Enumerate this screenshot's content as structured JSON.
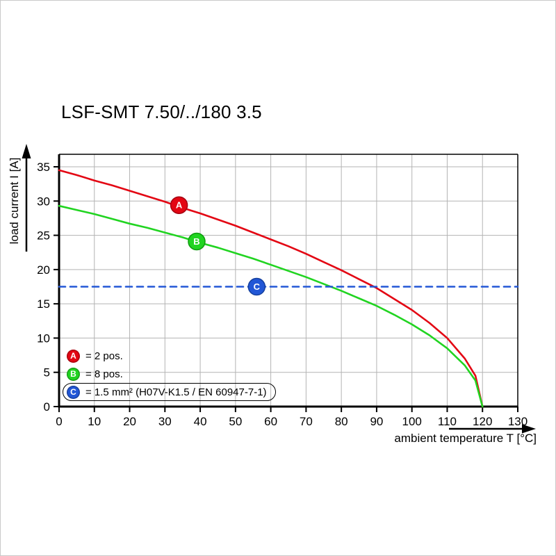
{
  "title": "LSF-SMT 7.50/../180 3.5",
  "axes": {
    "x_label": "ambient temperature T [°C]",
    "y_label": "load current I [A]"
  },
  "legend": [
    {
      "marker": "A",
      "color": "#e30613",
      "label": "= 2 pos.",
      "boxed": false
    },
    {
      "marker": "B",
      "color": "#21d421",
      "label": "= 8 pos.",
      "boxed": false
    },
    {
      "marker": "C",
      "color": "#2257d6",
      "label": "= 1.5 mm² (H07V-K1.5 / EN 60947-7-1)",
      "boxed": true
    }
  ],
  "colors": {
    "grid": "#b3b3b3",
    "axis": "#000000",
    "series_a": "#e30613",
    "series_b": "#21d421",
    "series_c": "#2257d6"
  },
  "chart_data": {
    "type": "line",
    "title": "LSF-SMT 7.50/../180 3.5",
    "xlabel": "ambient temperature T [°C]",
    "ylabel": "load current I [A]",
    "xlim": [
      0,
      130
    ],
    "ylim": [
      0,
      35
    ],
    "x_ticks": [
      0,
      10,
      20,
      30,
      40,
      50,
      60,
      70,
      80,
      90,
      100,
      110,
      120,
      130
    ],
    "y_ticks": [
      0,
      5,
      10,
      15,
      20,
      25,
      30,
      35
    ],
    "grid": true,
    "legend_position": "lower-left-inside",
    "series": [
      {
        "name": "A = 2 pos.",
        "color": "#e30613",
        "edge": "#a50010",
        "style": "solid",
        "x": [
          0,
          5,
          10,
          15,
          20,
          25,
          30,
          35,
          40,
          45,
          50,
          55,
          60,
          65,
          70,
          75,
          80,
          85,
          90,
          95,
          100,
          105,
          110,
          115,
          118,
          120
        ],
        "values": [
          34.5,
          33.8,
          33.0,
          32.3,
          31.5,
          30.7,
          29.9,
          29.0,
          28.2,
          27.3,
          26.4,
          25.4,
          24.4,
          23.4,
          22.3,
          21.1,
          19.9,
          18.6,
          17.3,
          15.7,
          14.1,
          12.2,
          10.0,
          7.0,
          4.5,
          0
        ],
        "point": {
          "label": "A",
          "x": 34,
          "y": 29.4
        }
      },
      {
        "name": "B = 8 pos.",
        "color": "#21d421",
        "edge": "#0f9c0f",
        "style": "solid",
        "x": [
          0,
          5,
          10,
          15,
          20,
          25,
          30,
          35,
          40,
          45,
          50,
          55,
          60,
          65,
          70,
          75,
          80,
          85,
          90,
          95,
          100,
          105,
          110,
          115,
          118,
          120
        ],
        "values": [
          29.3,
          28.7,
          28.1,
          27.4,
          26.7,
          26.1,
          25.4,
          24.7,
          23.9,
          23.2,
          22.4,
          21.6,
          20.7,
          19.8,
          18.9,
          17.9,
          16.9,
          15.8,
          14.7,
          13.4,
          12.0,
          10.4,
          8.5,
          6.0,
          3.8,
          0
        ],
        "point": {
          "label": "B",
          "x": 39,
          "y": 24.1
        }
      },
      {
        "name": "C = 1.5 mm² (H07V-K1.5 / EN 60947-7-1)",
        "color": "#2257d6",
        "edge": "#15409e",
        "style": "dashed",
        "x": [
          0,
          130
        ],
        "values": [
          17.5,
          17.5
        ],
        "point": {
          "label": "C",
          "x": 56,
          "y": 17.5
        }
      }
    ]
  }
}
